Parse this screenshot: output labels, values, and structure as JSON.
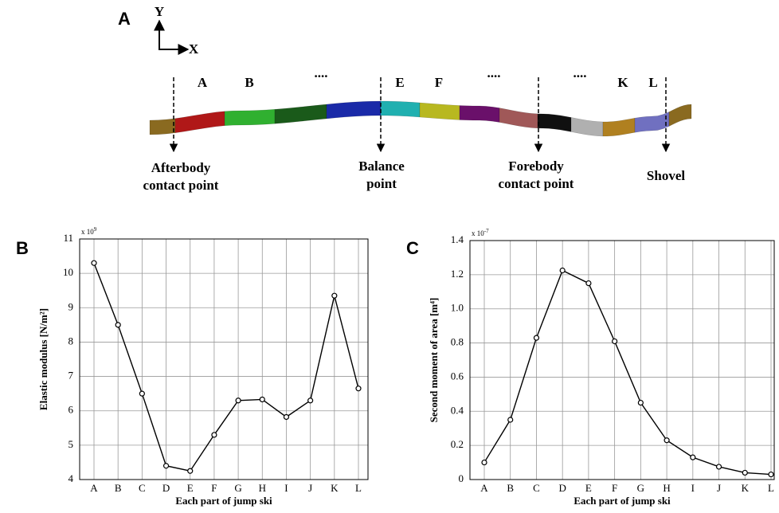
{
  "diagram": {
    "panel_label": "A",
    "axes": {
      "y": "Y",
      "x": "X"
    },
    "segment_labels": [
      "A",
      "B",
      "....",
      "E",
      "F",
      "....",
      "....",
      "K",
      "L"
    ],
    "points": [
      {
        "lines": [
          "Afterbody",
          "contact point"
        ]
      },
      {
        "lines": [
          "Balance",
          "point"
        ]
      },
      {
        "lines": [
          "Forebody",
          "contact point"
        ]
      },
      {
        "lines": [
          "Shovel"
        ]
      }
    ]
  },
  "chart_data": [
    {
      "type": "line",
      "panel_label": "B",
      "x_label": "Each part of jump ski",
      "y_label": "Elastic modulus [N/m²]",
      "y_multiplier": {
        "base": "x 10",
        "exponent": "9"
      },
      "categories": [
        "A",
        "B",
        "C",
        "D",
        "E",
        "F",
        "G",
        "H",
        "I",
        "J",
        "K",
        "L"
      ],
      "values": [
        10.3,
        8.5,
        6.5,
        4.4,
        4.25,
        5.3,
        6.3,
        6.33,
        5.82,
        6.3,
        9.35,
        6.65
      ],
      "color": "#000000",
      "ylim": [
        4,
        11
      ],
      "yticks": [
        4,
        5,
        6,
        7,
        8,
        9,
        10,
        11
      ],
      "grid": true
    },
    {
      "type": "line",
      "panel_label": "C",
      "x_label": "Each part of jump ski",
      "y_label": "Second moment of area [m⁴]",
      "y_multiplier": {
        "base": "x 10",
        "exponent": "-7"
      },
      "categories": [
        "A",
        "B",
        "C",
        "D",
        "E",
        "F",
        "G",
        "H",
        "I",
        "J",
        "K",
        "L"
      ],
      "values": [
        0.1,
        0.35,
        0.83,
        1.225,
        1.15,
        0.81,
        0.45,
        0.23,
        0.13,
        0.075,
        0.04,
        0.03
      ],
      "color": "#000000",
      "ylim": [
        0,
        1.4
      ],
      "yticks": [
        0,
        0.2,
        0.4,
        0.6,
        0.8,
        {
          "value": 1,
          "label": "1.0"
        },
        1.2,
        1.4
      ],
      "grid": true
    }
  ]
}
